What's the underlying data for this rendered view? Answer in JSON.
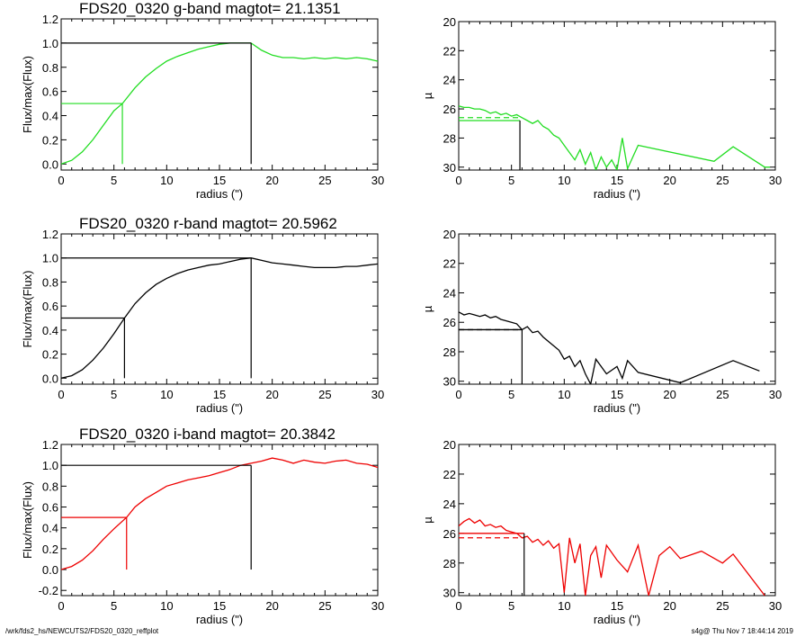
{
  "footer": {
    "path": "/wrk/fds2_hs/NEWCUTS2/FDS20_0320_reffplot",
    "stamp": "s4g@  Thu Nov  7 18:44:14 2019"
  },
  "chart_data": [
    {
      "type": "line",
      "panel": "g-band growth curve",
      "title": "FDS20_0320 g-band  magtot=     21.1351",
      "color": "#22dd22",
      "xlabel": "radius (\")",
      "ylabel": "Flux/max(Flux)",
      "xlim": [
        0,
        30
      ],
      "ylim": [
        -0.05,
        1.2
      ],
      "xticks": [
        "0",
        "5",
        "10",
        "15",
        "20",
        "25",
        "30"
      ],
      "yticks": [
        "0.0",
        "0.2",
        "0.4",
        "0.6",
        "0.8",
        "1.0",
        "1.2"
      ],
      "series": [
        {
          "x": [
            0,
            1,
            2,
            3,
            4,
            5,
            5.8,
            7,
            8,
            9,
            10,
            11,
            12,
            13,
            14,
            15,
            16,
            17,
            18,
            19,
            20,
            21,
            22,
            23,
            24,
            25,
            26,
            27,
            28,
            29,
            30
          ],
          "y": [
            0,
            0.03,
            0.1,
            0.2,
            0.32,
            0.44,
            0.5,
            0.63,
            0.72,
            0.79,
            0.85,
            0.89,
            0.92,
            0.95,
            0.97,
            0.99,
            1.0,
            1.0,
            1.0,
            0.94,
            0.9,
            0.88,
            0.88,
            0.87,
            0.88,
            0.87,
            0.88,
            0.87,
            0.88,
            0.87,
            0.85
          ]
        }
      ],
      "half_radius": 5.8,
      "total_radius": 18
    },
    {
      "type": "line",
      "panel": "g-band surface brightness profile",
      "title": "",
      "color": "#22dd22",
      "xlabel": "radius (\")",
      "ylabel": "µ",
      "xlim": [
        0,
        30
      ],
      "ylim": [
        30.2,
        20
      ],
      "xticks": [
        "0",
        "5",
        "10",
        "15",
        "20",
        "25",
        "30"
      ],
      "yticks": [
        "20",
        "22",
        "24",
        "26",
        "28",
        "30"
      ],
      "series": [
        {
          "x": [
            0,
            0.5,
            1,
            1.5,
            2,
            2.5,
            3,
            3.5,
            4,
            4.5,
            5,
            5.5,
            6,
            6.5,
            7,
            7.5,
            8,
            8.5,
            9,
            9.5,
            10,
            10.5,
            11,
            11.5,
            12,
            12.5,
            13,
            13.5,
            14,
            14.5,
            15,
            15.5,
            16,
            17,
            24.2,
            26,
            29,
            29.5
          ],
          "y": [
            25.8,
            25.9,
            25.9,
            26.0,
            26.0,
            26.1,
            26.3,
            26.2,
            26.4,
            26.3,
            26.5,
            26.4,
            26.6,
            26.8,
            27.0,
            26.8,
            27.2,
            27.4,
            27.8,
            28.0,
            28.5,
            29.0,
            29.5,
            28.8,
            29.8,
            29.0,
            30.2,
            29.3,
            30.0,
            29.5,
            30.2,
            28.0,
            30.1,
            28.5,
            29.6,
            28.6,
            30.0,
            30.0
          ]
        }
      ],
      "mu_eff": 26.8,
      "mu_mean": 26.6,
      "r_eff": 5.8
    },
    {
      "type": "line",
      "panel": "r-band growth curve",
      "title": "FDS20_0320 r-band  magtot=     20.5962",
      "color": "#000000",
      "xlabel": "radius (\")",
      "ylabel": "Flux/max(Flux)",
      "xlim": [
        0,
        30
      ],
      "ylim": [
        -0.05,
        1.2
      ],
      "xticks": [
        "0",
        "5",
        "10",
        "15",
        "20",
        "25",
        "30"
      ],
      "yticks": [
        "0.0",
        "0.2",
        "0.4",
        "0.6",
        "0.8",
        "1.0",
        "1.2"
      ],
      "series": [
        {
          "x": [
            0,
            1,
            2,
            3,
            4,
            5,
            6,
            7,
            8,
            9,
            10,
            11,
            12,
            13,
            14,
            15,
            16,
            17,
            18,
            19,
            20,
            21,
            22,
            23,
            24,
            25,
            26,
            27,
            28,
            29,
            30
          ],
          "y": [
            0,
            0.02,
            0.07,
            0.15,
            0.25,
            0.37,
            0.5,
            0.62,
            0.71,
            0.78,
            0.83,
            0.87,
            0.9,
            0.92,
            0.94,
            0.95,
            0.97,
            0.99,
            1.0,
            0.98,
            0.96,
            0.95,
            0.94,
            0.93,
            0.92,
            0.92,
            0.92,
            0.93,
            0.93,
            0.94,
            0.95
          ]
        }
      ],
      "half_radius": 6,
      "total_radius": 18
    },
    {
      "type": "line",
      "panel": "r-band surface brightness profile",
      "title": "",
      "color": "#000000",
      "xlabel": "radius (\")",
      "ylabel": "µ",
      "xlim": [
        0,
        30
      ],
      "ylim": [
        30.2,
        20
      ],
      "xticks": [
        "0",
        "5",
        "10",
        "15",
        "20",
        "25",
        "30"
      ],
      "yticks": [
        "20",
        "22",
        "24",
        "26",
        "28",
        "30"
      ],
      "series": [
        {
          "x": [
            0,
            0.5,
            1,
            1.5,
            2,
            2.5,
            3,
            3.5,
            4,
            4.5,
            5,
            5.5,
            6,
            6.5,
            7,
            7.5,
            8,
            8.5,
            9,
            9.5,
            10,
            10.5,
            11,
            11.5,
            12,
            12.5,
            13,
            14,
            15,
            15.5,
            16,
            17,
            21,
            26,
            28.5
          ],
          "y": [
            25.3,
            25.5,
            25.4,
            25.5,
            25.6,
            25.5,
            25.7,
            25.6,
            25.8,
            25.9,
            26.0,
            26.1,
            26.5,
            26.3,
            26.7,
            26.6,
            27.0,
            27.3,
            27.6,
            27.9,
            28.5,
            28.3,
            29.0,
            28.6,
            29.5,
            30.2,
            28.5,
            29.5,
            29.0,
            29.8,
            28.6,
            29.4,
            30.1,
            28.6,
            29.3
          ]
        }
      ],
      "mu_eff": 26.5,
      "mu_mean": 26.5,
      "r_eff": 6
    },
    {
      "type": "line",
      "panel": "i-band growth curve",
      "title": "FDS20_0320 i-band  magtot=     20.3842",
      "color": "#ee0000",
      "xlabel": "radius (\")",
      "ylabel": "Flux/max(Flux)",
      "xlim": [
        0,
        30
      ],
      "ylim": [
        -0.25,
        1.2
      ],
      "xticks": [
        "0",
        "5",
        "10",
        "15",
        "20",
        "25",
        "30"
      ],
      "yticks": [
        "-0.2",
        "0.0",
        "0.2",
        "0.4",
        "0.6",
        "0.8",
        "1.0",
        "1.2"
      ],
      "series": [
        {
          "x": [
            0,
            1,
            2,
            3,
            4,
            5,
            6.2,
            7,
            8,
            9,
            10,
            11,
            12,
            13,
            14,
            15,
            16,
            17,
            18,
            19,
            20,
            21,
            22,
            23,
            24,
            25,
            26,
            27,
            28,
            29,
            30
          ],
          "y": [
            0,
            0.03,
            0.09,
            0.18,
            0.29,
            0.39,
            0.5,
            0.6,
            0.68,
            0.74,
            0.8,
            0.83,
            0.86,
            0.88,
            0.9,
            0.93,
            0.96,
            1.0,
            1.02,
            1.04,
            1.07,
            1.05,
            1.02,
            1.05,
            1.03,
            1.02,
            1.04,
            1.05,
            1.02,
            1.01,
            0.98
          ]
        }
      ],
      "half_radius": 6.2,
      "total_radius": 18
    },
    {
      "type": "line",
      "panel": "i-band surface brightness profile",
      "title": "",
      "color": "#ee0000",
      "xlabel": "radius (\")",
      "ylabel": "µ",
      "xlim": [
        0,
        30
      ],
      "ylim": [
        30.2,
        20
      ],
      "xticks": [
        "0",
        "5",
        "10",
        "15",
        "20",
        "25",
        "30"
      ],
      "yticks": [
        "20",
        "22",
        "24",
        "26",
        "28",
        "30"
      ],
      "series": [
        {
          "x": [
            0,
            0.5,
            1,
            1.5,
            2,
            2.5,
            3,
            3.5,
            4,
            4.5,
            5,
            5.5,
            6,
            6.5,
            7,
            7.5,
            8,
            8.5,
            9,
            9.5,
            10,
            10.5,
            11,
            11.5,
            12,
            12.5,
            13,
            13.5,
            14,
            15,
            16,
            17,
            18,
            19,
            20,
            21,
            23,
            25,
            26,
            29
          ],
          "y": [
            25.5,
            25.2,
            25.0,
            25.3,
            25.1,
            25.5,
            25.4,
            25.6,
            25.5,
            25.8,
            25.9,
            26.0,
            26.3,
            26.2,
            26.6,
            26.4,
            26.8,
            26.5,
            27.0,
            26.7,
            30.0,
            26.3,
            28.0,
            26.7,
            30.2,
            27.5,
            26.9,
            29.0,
            26.8,
            27.8,
            28.6,
            26.8,
            30.2,
            27.5,
            26.9,
            27.7,
            27.2,
            28.0,
            27.4,
            30.2
          ]
        }
      ],
      "mu_eff": 26.0,
      "mu_mean": 26.3,
      "r_eff": 6.2
    }
  ]
}
